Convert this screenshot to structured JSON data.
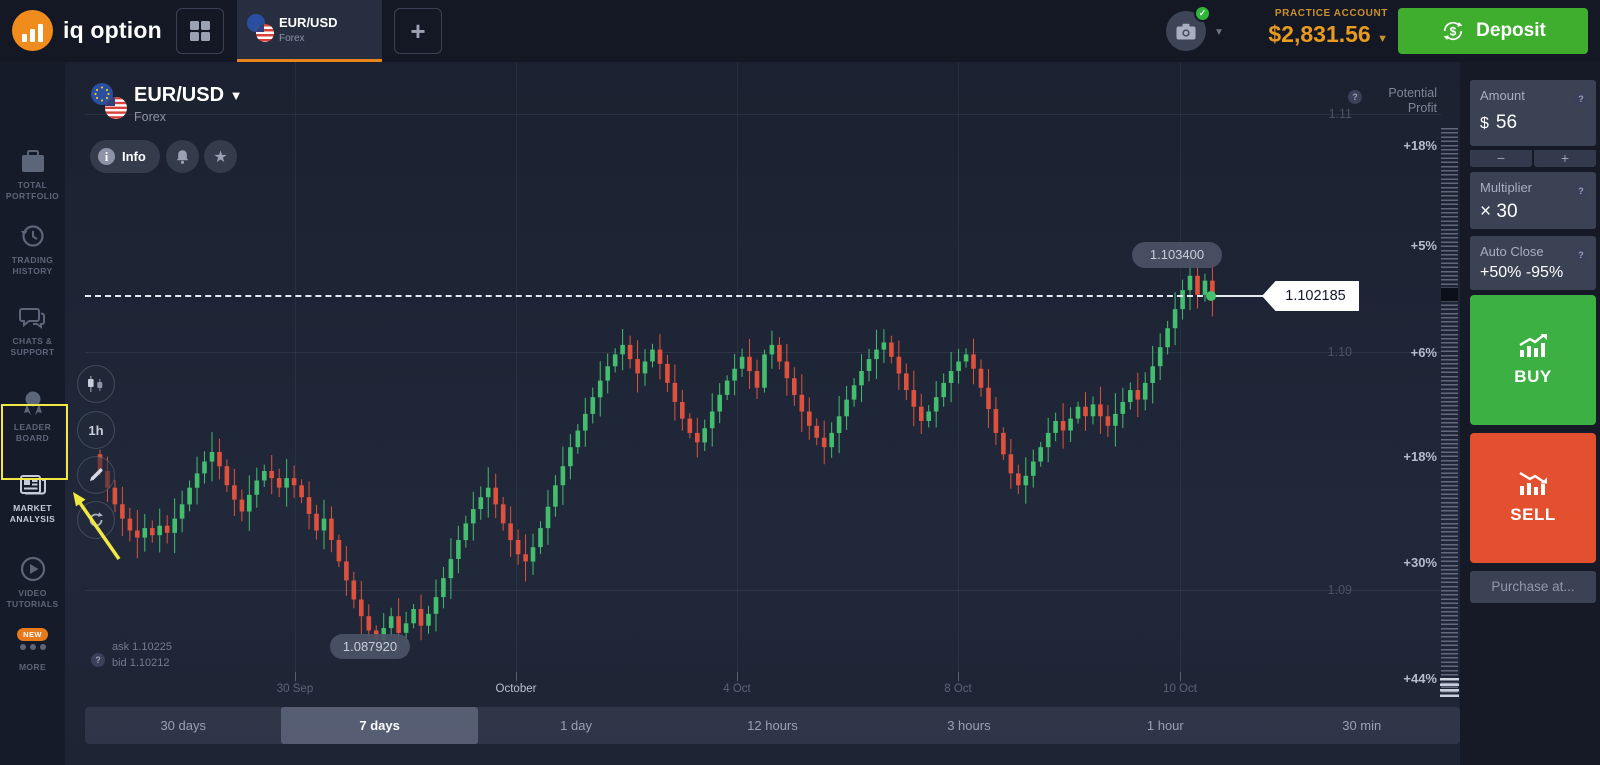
{
  "colors": {
    "accent_orange": "#E8961E",
    "deposit_green": "#3FAE2E",
    "buy_green": "#3CB043",
    "sell_red": "#E2502F",
    "candle_up": "#43BE6E",
    "candle_down": "#E0513D",
    "highlight_yellow": "#F2E844"
  },
  "topbar": {
    "logo_text": "iq option",
    "tab": {
      "title": "EUR/USD",
      "subtitle": "Forex"
    },
    "plus_label": "+",
    "account": {
      "label": "PRACTICE ACCOUNT",
      "balance": "$2,831.56"
    },
    "deposit_label": "Deposit"
  },
  "sidebar": {
    "items": [
      {
        "label": "TOTAL PORTFOLIO"
      },
      {
        "label": "TRADING HISTORY"
      },
      {
        "label": "CHATS & SUPPORT"
      },
      {
        "label": "LEADER BOARD"
      },
      {
        "label": "MARKET ANALYSIS",
        "active": true
      },
      {
        "label": "VIDEO TUTORIALS"
      },
      {
        "label": "MORE",
        "badge": "NEW"
      }
    ]
  },
  "chart": {
    "header": {
      "instrument": "EUR/USD",
      "market": "Forex",
      "info_label": "Info"
    },
    "tools": {
      "interval_label": "1h"
    },
    "y_ticks": [
      "1.11",
      "1.10",
      "1.09"
    ],
    "x_ticks": [
      "30 Sep",
      "October",
      "4 Oct",
      "8 Oct",
      "10 Oct"
    ],
    "high_tag": "1.103400",
    "low_tag": "1.087920",
    "price_tag": "1.102185",
    "ask_label": "ask 1.10225",
    "bid_label": "bid 1.10212",
    "chart_data": {
      "type": "candlestick",
      "instrument": "EUR/USD",
      "interval": "1h",
      "visible_range": "7 days",
      "y_axis_ticks": [
        1.11,
        1.1,
        1.09
      ],
      "x_axis_ticks": [
        "30 Sep",
        "October",
        "4 Oct",
        "8 Oct",
        "10 Oct"
      ],
      "period_high": 1.1034,
      "period_low": 1.08792,
      "last_price": 1.102185,
      "ask": 1.10225,
      "bid": 1.10212,
      "up_color": "#43BE6E",
      "down_color": "#E0513D",
      "first_open": 1.0957,
      "closes": [
        1.095,
        1.0943,
        1.0936,
        1.093,
        1.0925,
        1.0922,
        1.0926,
        1.0923,
        1.0927,
        1.0924,
        1.093,
        1.0936,
        1.0943,
        1.0949,
        1.0954,
        1.0958,
        1.0952,
        1.0944,
        1.0938,
        1.0933,
        1.094,
        1.0946,
        1.095,
        1.0947,
        1.0943,
        1.0947,
        1.0944,
        1.0939,
        1.0932,
        1.0925,
        1.093,
        1.0921,
        1.0912,
        1.0904,
        1.0896,
        1.0889,
        1.0883,
        1.0879,
        1.0884,
        1.0889,
        1.0882,
        1.0886,
        1.0892,
        1.0885,
        1.089,
        1.0897,
        1.0905,
        1.0913,
        1.0921,
        1.0928,
        1.0934,
        1.0939,
        1.0943,
        1.0936,
        1.0928,
        1.0921,
        1.0915,
        1.0912,
        1.0918,
        1.0926,
        1.0935,
        1.0944,
        1.0952,
        1.096,
        1.0967,
        1.0974,
        1.0981,
        1.0988,
        1.0994,
        1.0999,
        1.1003,
        1.0997,
        1.0991,
        1.0996,
        1.1001,
        1.0995,
        1.0987,
        1.0979,
        1.0972,
        1.0966,
        1.0962,
        1.0968,
        1.0975,
        1.0982,
        1.0988,
        1.0993,
        1.0998,
        1.0992,
        1.0985,
        1.0999,
        1.1003,
        1.0996,
        1.0989,
        1.0982,
        1.0975,
        1.0969,
        1.0964,
        1.096,
        1.0966,
        1.0973,
        1.098,
        1.0986,
        1.0992,
        1.0997,
        1.1001,
        1.1004,
        1.0998,
        1.0991,
        1.0984,
        1.0977,
        1.0971,
        1.0975,
        1.0981,
        1.0987,
        1.0992,
        1.0996,
        1.0999,
        1.0993,
        1.0985,
        1.0976,
        1.0966,
        1.0957,
        1.0949,
        1.0944,
        1.0948,
        1.0954,
        1.096,
        1.0966,
        1.0971,
        1.0967,
        1.0972,
        1.0977,
        1.0973,
        1.0978,
        1.0973,
        1.0969,
        1.0974,
        1.0979,
        1.0984,
        1.098,
        1.0987,
        1.0994,
        1.1002,
        1.101,
        1.1018,
        1.1026,
        1.1032,
        1.1024,
        1.103,
        1.10219
      ]
    }
  },
  "profit_scale": {
    "header": "Potential Profit",
    "labels": [
      {
        "text": "+18%"
      },
      {
        "text": "+5%"
      },
      {
        "text": "+6%"
      },
      {
        "text": "+18%"
      },
      {
        "text": "+30%"
      },
      {
        "text": "+44%"
      }
    ]
  },
  "trade_panel": {
    "amount": {
      "label": "Amount",
      "currency": "$",
      "value": "56",
      "minus": "−",
      "plus": "+"
    },
    "multiplier": {
      "label": "Multiplier",
      "value": "× 30"
    },
    "auto_close": {
      "label": "Auto Close",
      "value": "+50% -95%"
    },
    "buy_label": "BUY",
    "sell_label": "SELL",
    "purchase_label": "Purchase at..."
  },
  "timeframes": {
    "options": [
      "30 days",
      "7 days",
      "1 day",
      "12 hours",
      "3 hours",
      "1 hour",
      "30 min"
    ],
    "active": "7 days"
  }
}
